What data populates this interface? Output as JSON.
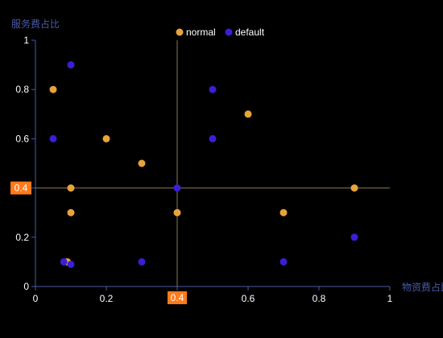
{
  "chart_data": {
    "type": "scatter",
    "xlabel": "物资费占比",
    "ylabel": "服务费占比",
    "xlim": [
      0,
      1
    ],
    "ylim": [
      0,
      1
    ],
    "x_ticks": [
      "0",
      "0.2",
      "0.4",
      "0.6",
      "0.8",
      "1"
    ],
    "y_ticks": [
      "0",
      "0.2",
      "0.4",
      "0.6",
      "0.8",
      "1"
    ],
    "grid": false,
    "legend_position": "top-center",
    "crosshair": {
      "x": 0.4,
      "y": 0.4,
      "x_label": "0.4",
      "y_label": "0.4"
    },
    "series": [
      {
        "name": "normal",
        "color": "#e8a33a",
        "points": [
          [
            0.05,
            0.8
          ],
          [
            0.1,
            0.4
          ],
          [
            0.1,
            0.3
          ],
          [
            0.09,
            0.1
          ],
          [
            0.2,
            0.6
          ],
          [
            0.3,
            0.5
          ],
          [
            0.4,
            0.3
          ],
          [
            0.6,
            0.7
          ],
          [
            0.7,
            0.3
          ],
          [
            0.9,
            0.4
          ]
        ]
      },
      {
        "name": "default",
        "color": "#3a1fd6",
        "points": [
          [
            0.1,
            0.9
          ],
          [
            0.05,
            0.6
          ],
          [
            0.08,
            0.1
          ],
          [
            0.1,
            0.09
          ],
          [
            0.3,
            0.1
          ],
          [
            0.4,
            0.4
          ],
          [
            0.5,
            0.8
          ],
          [
            0.5,
            0.6
          ],
          [
            0.7,
            0.1
          ],
          [
            0.9,
            0.2
          ]
        ]
      }
    ]
  },
  "colors": {
    "axis": "#4a5aa8",
    "axis_name": "#4a5aa8",
    "crosshair": "#8a7a55",
    "pointer_bg": "#ff7a1a"
  }
}
